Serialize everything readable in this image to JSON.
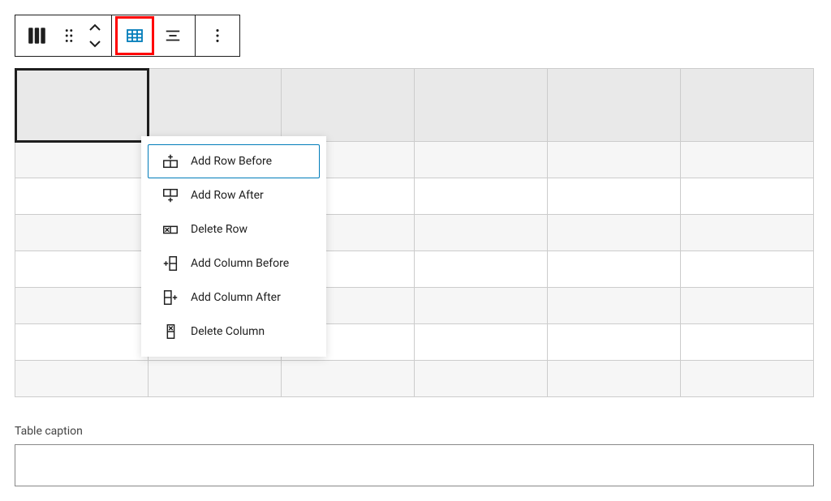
{
  "menu": {
    "items": [
      {
        "label": "Add Row Before",
        "icon": "row-before",
        "selected": true
      },
      {
        "label": "Add Row After",
        "icon": "row-after",
        "selected": false
      },
      {
        "label": "Delete Row",
        "icon": "row-delete",
        "selected": false
      },
      {
        "label": "Add Column Before",
        "icon": "col-before",
        "selected": false
      },
      {
        "label": "Add Column After",
        "icon": "col-after",
        "selected": false
      },
      {
        "label": "Delete Column",
        "icon": "col-delete",
        "selected": false
      }
    ]
  },
  "table": {
    "rows": 8,
    "cols": 6,
    "active_row": 0,
    "active_col": 0,
    "header_row": 0,
    "striped": true,
    "colors": {
      "border": "#cccccc",
      "cell_bg": "#ffffff",
      "stripe_bg": "#f6f6f6",
      "header_bg": "#e9e9e9",
      "active_outline": "#1e1e1e"
    }
  },
  "caption": {
    "label": "Table caption",
    "value": "",
    "placeholder": ""
  },
  "colors": {
    "accent": "#007cba",
    "highlight_ring": "#ff0000",
    "text": "#1e1e1e",
    "background": "#ffffff"
  }
}
